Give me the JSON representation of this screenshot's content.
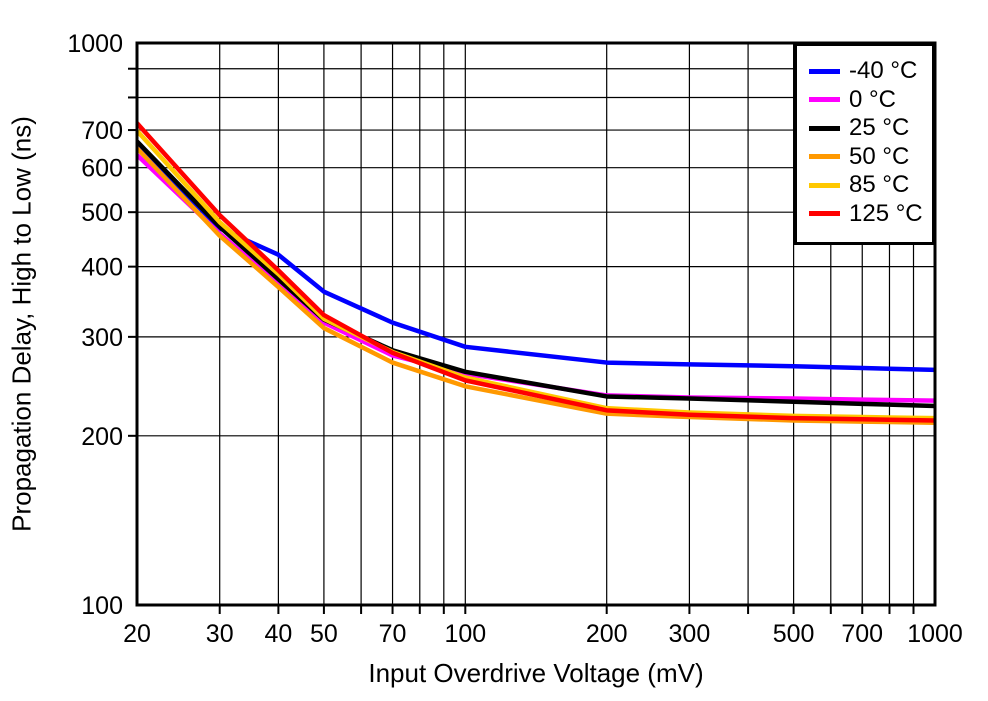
{
  "chart_data": {
    "type": "line",
    "title": "",
    "xlabel": "Input Overdrive Voltage (mV)",
    "ylabel": "Propagation Delay, High to Low (ns)",
    "x_scale": "log",
    "y_scale": "log",
    "xlim": [
      20,
      1000
    ],
    "ylim": [
      100,
      1000
    ],
    "x_ticks_labeled": [
      20,
      30,
      40,
      50,
      70,
      100,
      200,
      300,
      500,
      700,
      1000
    ],
    "x_gridlines": [
      30,
      40,
      50,
      60,
      70,
      80,
      90,
      100,
      200,
      300,
      400,
      500,
      600,
      700,
      800,
      900
    ],
    "y_ticks_labeled": [
      100,
      200,
      300,
      400,
      500,
      600,
      700,
      1000
    ],
    "y_gridlines": [
      200,
      300,
      400,
      500,
      600,
      700,
      800,
      900
    ],
    "grid": true,
    "legend_position": "top-right",
    "x": [
      20,
      30,
      40,
      50,
      70,
      100,
      200,
      300,
      500,
      700,
      1000
    ],
    "series": [
      {
        "name": "-40 °C",
        "color": "#0000FF",
        "values": [
          660,
          468,
          420,
          361,
          318,
          288,
          270,
          268,
          266,
          264,
          262
        ]
      },
      {
        "name": "0 °C",
        "color": "#FF00FF",
        "values": [
          632,
          458,
          373,
          318,
          278,
          258,
          236,
          234,
          233,
          232,
          231
        ]
      },
      {
        "name": "25 °C",
        "color": "#000000",
        "values": [
          668,
          471,
          380,
          322,
          284,
          260,
          235,
          233,
          230,
          228,
          226
        ]
      },
      {
        "name": "50 °C",
        "color": "#FF9900",
        "values": [
          650,
          454,
          368,
          311,
          270,
          245,
          219,
          216,
          213,
          212,
          211
        ]
      },
      {
        "name": "85 °C",
        "color": "#FFC800",
        "values": [
          698,
          480,
          388,
          323,
          282,
          254,
          224,
          220,
          217,
          216,
          215
        ]
      },
      {
        "name": "125 °C",
        "color": "#FF0000",
        "values": [
          720,
          494,
          394,
          328,
          281,
          251,
          222,
          218,
          215,
          214,
          213
        ]
      }
    ],
    "style": {
      "border_color": "#000000",
      "gridline_color": "#000000",
      "background": "#FFFFFF",
      "line_width": 4.5
    }
  }
}
